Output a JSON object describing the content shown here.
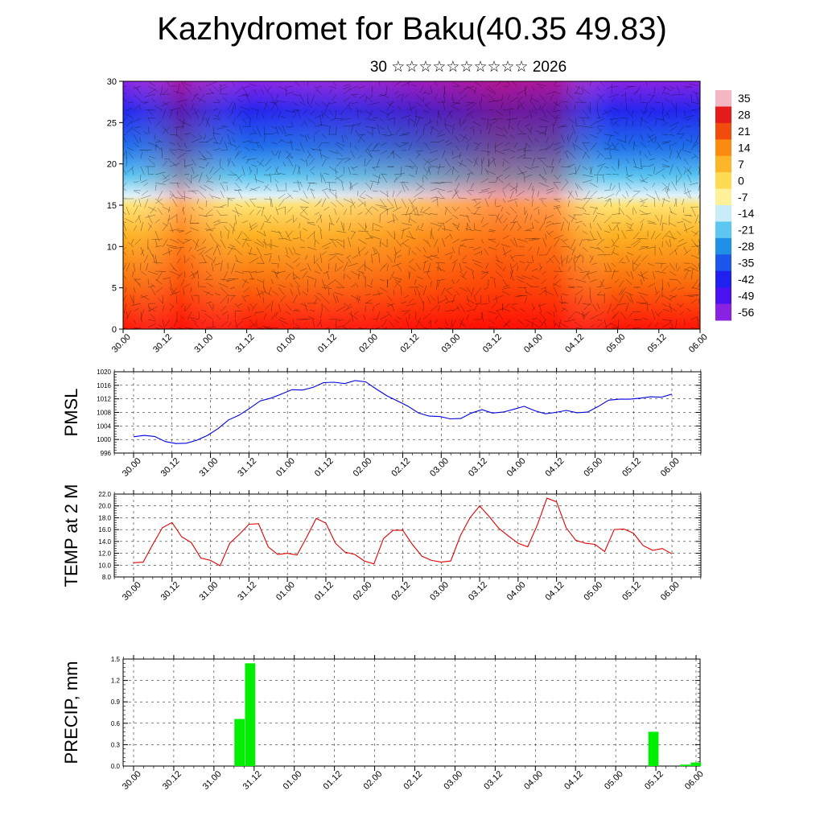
{
  "title": "Kazhydromet for Baku(40.35 49.83)",
  "subtitle": "30 ☆☆☆☆☆☆☆☆☆☆ 2026",
  "time_labels": [
    "30.00",
    "30.12",
    "31.00",
    "31.12",
    "01.00",
    "01.12",
    "02.00",
    "02.12",
    "03.00",
    "03.12",
    "04.00",
    "04.12",
    "05.00",
    "05.12",
    "06.00"
  ],
  "colorbar": {
    "labels": [
      "35",
      "28",
      "21",
      "14",
      "7",
      "0",
      "-7",
      "-14",
      "-21",
      "-28",
      "-35",
      "-42",
      "-49",
      "-56"
    ],
    "colors": [
      "#f4b6c0",
      "#e51a1a",
      "#f24b0e",
      "#fa8a10",
      "#fdb628",
      "#fddb55",
      "#fff09a",
      "#c9ecf8",
      "#5cc8f2",
      "#1f90e6",
      "#1d56ea",
      "#2020f0",
      "#4a12f0",
      "#8a22e4"
    ]
  },
  "chart_data": [
    {
      "type": "heatmap",
      "ylabel": "",
      "ylim": [
        0,
        30
      ],
      "yticks": [
        0,
        5,
        10,
        15,
        20,
        25,
        30
      ],
      "categories": [
        "30.00",
        "30.12",
        "31.00",
        "31.12",
        "01.00",
        "01.12",
        "02.00",
        "02.12",
        "03.00",
        "03.12",
        "04.00",
        "04.12",
        "05.00",
        "05.12",
        "06.00"
      ],
      "legend_range": [
        -56,
        35
      ]
    },
    {
      "type": "line",
      "ylabel": "PMSL",
      "ylim": [
        996,
        1020
      ],
      "yticks": [
        "996",
        "1000",
        "1004",
        "1008",
        "1012",
        "1016",
        "1020"
      ],
      "color": "#0000e0",
      "values": [
        1000.8,
        1001.2,
        1000.9,
        999.4,
        998.8,
        998.9,
        999.8,
        1001.2,
        1003.2,
        1005.8,
        1007.2,
        1009.2,
        1011.4,
        1012.2,
        1013.4,
        1014.7,
        1014.6,
        1015.4,
        1016.8,
        1016.9,
        1016.5,
        1017.4,
        1017.0,
        1014.9,
        1012.9,
        1011.4,
        1009.8,
        1007.8,
        1006.9,
        1006.8,
        1006.1,
        1006.2,
        1007.8,
        1008.8,
        1007.8,
        1008.1,
        1008.9,
        1009.8,
        1008.5,
        1007.6,
        1008.0,
        1008.6,
        1007.9,
        1008.1,
        1009.7,
        1011.6,
        1011.9,
        1011.9,
        1012.2,
        1012.6,
        1012.5,
        1013.4
      ]
    },
    {
      "type": "line",
      "ylabel": "TEMP at 2 M",
      "ylim": [
        8,
        22
      ],
      "yticks": [
        "8.0",
        "10.0",
        "12.0",
        "14.0",
        "16.0",
        "18.0",
        "20.0",
        "22.0"
      ],
      "color": "#e00000",
      "values": [
        10.4,
        10.5,
        13.5,
        16.3,
        17.2,
        14.8,
        13.8,
        11.2,
        10.8,
        9.9,
        13.7,
        15.2,
        16.9,
        17.0,
        13.1,
        11.8,
        12.0,
        11.7,
        14.7,
        17.9,
        17.1,
        13.7,
        12.2,
        11.8,
        10.7,
        10.2,
        14.5,
        15.9,
        15.9,
        13.5,
        11.5,
        10.8,
        10.5,
        10.7,
        15.0,
        18.0,
        20.0,
        18.2,
        16.2,
        14.9,
        13.7,
        13.1,
        16.8,
        21.3,
        20.7,
        16.3,
        14.2,
        13.7,
        13.5,
        12.3,
        16.0,
        16.1,
        15.4,
        13.3,
        12.5,
        12.8,
        11.9
      ]
    },
    {
      "type": "bar",
      "ylabel": "PRECIP, mm",
      "ylim": [
        0,
        1.5
      ],
      "yticks": [
        "0.0",
        "0.3",
        "0.6",
        "0.9",
        "1.2",
        "1.5"
      ],
      "color": "#00ee00",
      "values": [
        0,
        0,
        0,
        0,
        0,
        0,
        0,
        0,
        0,
        0,
        0.66,
        1.44,
        0,
        0,
        0,
        0,
        0,
        0,
        0,
        0,
        0,
        0,
        0,
        0,
        0,
        0,
        0,
        0,
        0,
        0,
        0,
        0,
        0,
        0,
        0,
        0,
        0,
        0,
        0,
        0,
        0,
        0,
        0,
        0,
        0,
        0,
        0,
        0,
        0,
        0.48,
        0,
        0,
        0.02,
        0.05
      ]
    }
  ]
}
